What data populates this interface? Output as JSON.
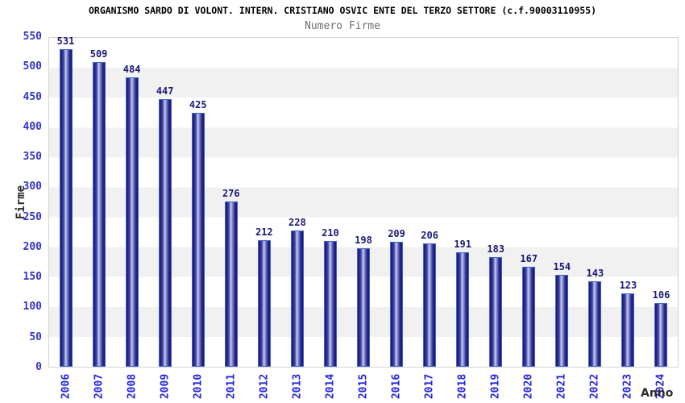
{
  "header": {
    "title": "ORGANISMO SARDO DI VOLONT. INTERN. CRISTIANO OSVIC ENTE DEL TERZO SETTORE (c.f.90003110955)",
    "subtitle": "Numero Firme"
  },
  "chart_data": {
    "type": "bar",
    "title": "Numero Firme",
    "categories": [
      "2006",
      "2007",
      "2008",
      "2009",
      "2010",
      "2011",
      "2012",
      "2013",
      "2014",
      "2015",
      "2016",
      "2017",
      "2018",
      "2019",
      "2020",
      "2021",
      "2022",
      "2023",
      "2024"
    ],
    "values": [
      531,
      509,
      484,
      447,
      425,
      276,
      212,
      228,
      210,
      198,
      209,
      206,
      191,
      183,
      167,
      154,
      143,
      123,
      106
    ],
    "xlabel": "Anno",
    "ylabel": "Firme",
    "ylim": [
      0,
      550
    ],
    "yticks": [
      0,
      50,
      100,
      150,
      200,
      250,
      300,
      350,
      400,
      450,
      500,
      550
    ],
    "grid": "alternating-horizontal-bands",
    "legend": "none",
    "bar_labels": true,
    "colors": {
      "bar_outline": "#3d64d0",
      "bar_edge": "#17176e",
      "bar_highlight": "#c9cfee",
      "band_gray": "#f1f1f1",
      "plot_border": "#d3d3d3",
      "tick_text": "#3333cc",
      "year_text": "#2424dd",
      "value_text": "#1a1a78",
      "title_text": "#000000",
      "subtitle_text": "#6e6e6e",
      "axis_title_text": "#2b2b2b"
    }
  }
}
